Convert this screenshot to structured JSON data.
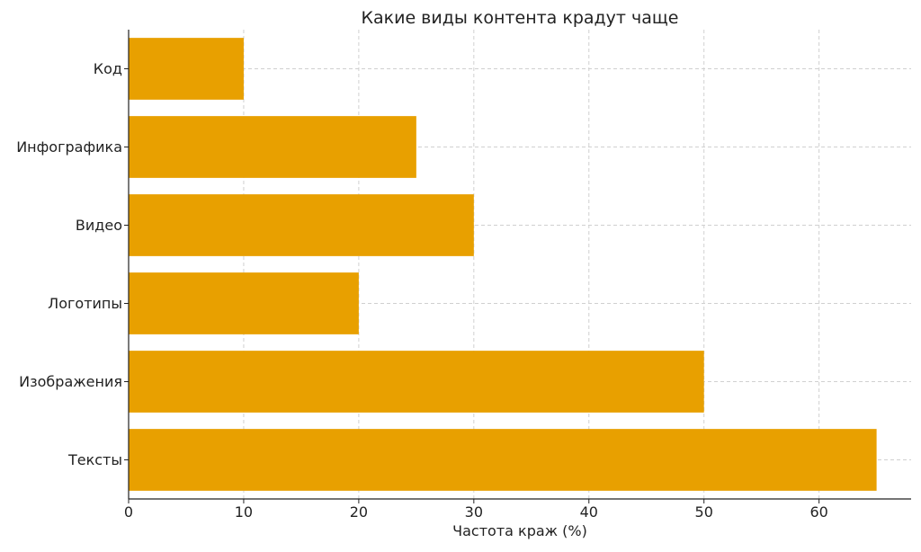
{
  "chart_data": {
    "type": "bar",
    "orientation": "horizontal",
    "title": "Какие виды контента крадут чаще",
    "xlabel": "Частота краж (%)",
    "ylabel": "",
    "categories": [
      "Тексты",
      "Изображения",
      "Логотипы",
      "Видео",
      "Инфографика",
      "Код"
    ],
    "values": [
      65,
      50,
      20,
      30,
      25,
      10
    ],
    "xlim": [
      0,
      68
    ],
    "xticks": [
      0,
      10,
      20,
      30,
      40,
      50,
      60
    ],
    "grid": true,
    "bar_color": "#E8A000",
    "grid_color": "#d0d0d0",
    "axis_color": "#222222"
  }
}
